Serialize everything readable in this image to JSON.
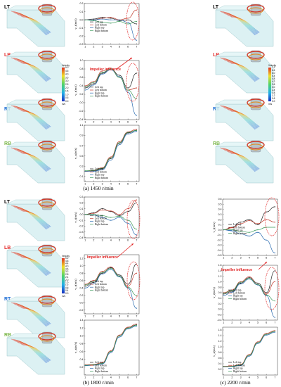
{
  "labels": {
    "lt": "LT",
    "lb": "LB",
    "rt": "RT",
    "rb": "RB"
  },
  "label_colors": {
    "lt": "#000000",
    "lb": "#e32b2b",
    "rt": "#1f6fd6",
    "rb": "#7ab648"
  },
  "captions": {
    "a": "(a) 1450 r/min",
    "b": "(b) 1800 r/min",
    "c": "(c) 2200 r/min"
  },
  "impeller_text": "Impeller influence",
  "colorbar": {
    "title": "Velocity",
    "unit": "m/s",
    "ticks_a": [
      "5.0",
      "4.5",
      "4.0",
      "3.5",
      "3.0",
      "2.5",
      "2.0",
      "1.5",
      "1.0",
      "0.5",
      "0.0"
    ],
    "ticks_b": [
      "5.2",
      "4.8",
      "4.4",
      "4.0",
      "3.6",
      "3.2",
      "2.8",
      "2.4",
      "2.0",
      "1.6",
      "1.2",
      "0.8",
      "0.4",
      "0.0"
    ],
    "ticks_c": [
      "7.2",
      "6.6",
      "6.0",
      "5.4",
      "4.8",
      "4.2",
      "3.6",
      "3.0",
      "2.4",
      "1.8",
      "1.2",
      "0.6",
      "0.0"
    ]
  },
  "legend": [
    "Left top",
    "Left bottom",
    "Right top",
    "Right bottom"
  ],
  "series_colors": [
    "#222222",
    "#c0392b",
    "#2b6cb0",
    "#3a9a5a"
  ],
  "chart_data": [
    {
      "id": "a1",
      "type": "line",
      "ylabel": "v_t(m/s)",
      "x": [
        1,
        2,
        3,
        4,
        5,
        6,
        7
      ],
      "ylim": [
        -0.3,
        0.2
      ],
      "yticks": [
        "0.2",
        "0.1",
        "0.0",
        "-0.1",
        "-0.2",
        "-0.3"
      ],
      "series": [
        {
          "name": "Left top",
          "values": [
            0.0,
            0.01,
            0.03,
            0.02,
            -0.01,
            0.0,
            -0.05
          ]
        },
        {
          "name": "Left bottom",
          "values": [
            0.0,
            0.0,
            0.02,
            0.03,
            0.0,
            0.02,
            0.12
          ]
        },
        {
          "name": "Right top",
          "values": [
            0.0,
            0.0,
            0.01,
            0.0,
            0.0,
            -0.03,
            -0.25
          ]
        },
        {
          "name": "Right bottom",
          "values": [
            0.0,
            -0.01,
            -0.03,
            -0.04,
            -0.02,
            -0.05,
            -0.02
          ]
        }
      ]
    },
    {
      "id": "a2",
      "type": "line",
      "ylabel": "v_r(m/s)",
      "x": [
        1,
        2,
        3,
        4,
        5,
        6,
        7
      ],
      "ylim": [
        -0.4,
        1.0
      ],
      "yticks": [
        "1.0",
        "0.8",
        "0.6",
        "0.4",
        "0.2",
        "0.0",
        "-0.2",
        "-0.4"
      ],
      "series": [
        {
          "name": "Left top",
          "values": [
            0.35,
            0.45,
            0.7,
            0.8,
            0.65,
            0.35,
            0.7
          ]
        },
        {
          "name": "Left bottom",
          "values": [
            0.4,
            0.5,
            0.75,
            0.82,
            0.6,
            0.3,
            0.35
          ]
        },
        {
          "name": "Right top",
          "values": [
            0.3,
            0.42,
            0.68,
            0.78,
            0.62,
            0.25,
            -0.3
          ]
        },
        {
          "name": "Right bottom",
          "values": [
            0.38,
            0.48,
            0.72,
            0.8,
            0.6,
            0.3,
            0.1
          ]
        }
      ]
    },
    {
      "id": "a3",
      "type": "line",
      "ylabel": "v_z(m/s)",
      "x": [
        1,
        2,
        3,
        4,
        5,
        6,
        7
      ],
      "ylim": [
        0.0,
        1.1
      ],
      "yticks": [
        "1.1",
        "0.9",
        "0.7",
        "0.5",
        "0.3",
        "0.1"
      ],
      "series": [
        {
          "name": "Left top",
          "values": [
            0.2,
            0.21,
            0.25,
            0.45,
            0.75,
            0.95,
            1.0
          ]
        },
        {
          "name": "Left bottom",
          "values": [
            0.2,
            0.22,
            0.27,
            0.48,
            0.78,
            0.97,
            1.02
          ]
        },
        {
          "name": "Right top",
          "values": [
            0.2,
            0.2,
            0.23,
            0.42,
            0.72,
            0.93,
            0.98
          ]
        },
        {
          "name": "Right bottom",
          "values": [
            0.21,
            0.22,
            0.26,
            0.46,
            0.76,
            0.96,
            1.0
          ]
        }
      ]
    },
    {
      "id": "b1",
      "type": "line",
      "ylabel": "v_t(m/s)",
      "x": [
        1,
        2,
        3,
        4,
        5,
        6,
        7
      ],
      "ylim": [
        -0.4,
        0.3
      ],
      "yticks": [
        "0.3",
        "0.2",
        "0.1",
        "0.0",
        "-0.1",
        "-0.2",
        "-0.3",
        "-0.4"
      ],
      "series": [
        {
          "name": "Left top",
          "values": [
            0.0,
            0.03,
            0.1,
            0.05,
            -0.02,
            0.05,
            0.2
          ]
        },
        {
          "name": "Left bottom",
          "values": [
            0.0,
            0.02,
            0.08,
            0.06,
            0.0,
            0.1,
            0.25
          ]
        },
        {
          "name": "Right top",
          "values": [
            0.0,
            -0.01,
            -0.05,
            -0.1,
            -0.05,
            -0.15,
            -0.35
          ]
        },
        {
          "name": "Right bottom",
          "values": [
            0.0,
            0.0,
            -0.02,
            -0.05,
            -0.03,
            -0.1,
            -0.25
          ]
        }
      ]
    },
    {
      "id": "b2",
      "type": "line",
      "ylabel": "v_r(m/s)",
      "x": [
        1,
        2,
        3,
        4,
        5,
        6,
        7
      ],
      "ylim": [
        -0.3,
        1.3
      ],
      "yticks": [
        "1.2",
        "1.0",
        "0.8",
        "0.6",
        "0.4",
        "0.2",
        "0.0",
        "-0.2"
      ],
      "series": [
        {
          "name": "Left top",
          "values": [
            0.45,
            0.55,
            0.8,
            0.95,
            0.75,
            0.5,
            1.05
          ]
        },
        {
          "name": "Left bottom",
          "values": [
            0.5,
            0.6,
            0.85,
            0.97,
            0.72,
            0.45,
            0.8
          ]
        },
        {
          "name": "Right top",
          "values": [
            0.4,
            0.52,
            0.78,
            0.9,
            0.7,
            0.4,
            -0.15
          ]
        },
        {
          "name": "Right bottom",
          "values": [
            0.48,
            0.58,
            0.82,
            0.93,
            0.72,
            0.42,
            0.2
          ]
        }
      ]
    },
    {
      "id": "b3",
      "type": "line",
      "ylabel": "v_z(m/s)",
      "x": [
        1,
        2,
        3,
        4,
        5,
        6,
        7
      ],
      "ylim": [
        0.0,
        1.4
      ],
      "yticks": [
        "1.4",
        "1.2",
        "1.0",
        "0.8",
        "0.6",
        "0.4",
        "0.2"
      ],
      "series": [
        {
          "name": "Left top",
          "values": [
            0.25,
            0.26,
            0.3,
            0.6,
            1.0,
            1.2,
            1.28
          ]
        },
        {
          "name": "Left bottom",
          "values": [
            0.26,
            0.27,
            0.32,
            0.62,
            1.02,
            1.22,
            1.3
          ]
        },
        {
          "name": "Right top",
          "values": [
            0.24,
            0.25,
            0.28,
            0.57,
            0.97,
            1.18,
            1.25
          ]
        },
        {
          "name": "Right bottom",
          "values": [
            0.25,
            0.26,
            0.3,
            0.6,
            1.0,
            1.2,
            1.27
          ]
        }
      ]
    },
    {
      "id": "c1",
      "type": "line",
      "ylabel": "v_t(m/s)",
      "x": [
        1,
        2,
        3,
        4,
        5,
        6,
        7
      ],
      "ylim": [
        -0.5,
        0.6
      ],
      "yticks": [
        "0.6",
        "0.5",
        "0.4",
        "0.3",
        "0.2",
        "0.1",
        "0.0",
        "-0.1",
        "-0.2",
        "-0.3",
        "-0.4",
        "-0.5"
      ],
      "series": [
        {
          "name": "Left top",
          "values": [
            0.0,
            0.05,
            0.15,
            0.2,
            0.1,
            0.35,
            0.45
          ]
        },
        {
          "name": "Left bottom",
          "values": [
            0.0,
            0.04,
            0.12,
            0.18,
            0.12,
            0.2,
            0.15
          ]
        },
        {
          "name": "Right top",
          "values": [
            0.0,
            -0.02,
            -0.08,
            -0.12,
            -0.05,
            -0.2,
            -0.45
          ]
        },
        {
          "name": "Right bottom",
          "values": [
            0.0,
            0.0,
            -0.03,
            -0.05,
            0.0,
            0.05,
            0.05
          ]
        }
      ]
    },
    {
      "id": "c2",
      "type": "line",
      "ylabel": "v_r(m/s)",
      "x": [
        1,
        2,
        3,
        4,
        5,
        6,
        7
      ],
      "ylim": [
        -0.4,
        1.6
      ],
      "yticks": [
        "1.6",
        "1.4",
        "1.2",
        "1.0",
        "0.8",
        "0.6",
        "0.4",
        "0.2",
        "0.0",
        "-0.2",
        "-0.4"
      ],
      "series": [
        {
          "name": "Left top",
          "values": [
            0.55,
            0.65,
            0.95,
            1.15,
            0.95,
            0.6,
            1.4
          ]
        },
        {
          "name": "Left bottom",
          "values": [
            0.6,
            0.7,
            1.0,
            1.18,
            0.9,
            0.55,
            1.0
          ]
        },
        {
          "name": "Right top",
          "values": [
            0.5,
            0.62,
            0.92,
            1.1,
            0.88,
            0.5,
            -0.3
          ]
        },
        {
          "name": "Right bottom",
          "values": [
            0.58,
            0.68,
            0.98,
            1.12,
            0.9,
            0.52,
            0.3
          ]
        }
      ]
    },
    {
      "id": "c3",
      "type": "line",
      "ylabel": "v_z(m/s)",
      "x": [
        1,
        2,
        3,
        4,
        5,
        6,
        7
      ],
      "ylim": [
        0.0,
        1.7
      ],
      "yticks": [
        "1.6",
        "1.4",
        "1.2",
        "1.0",
        "0.8",
        "0.6",
        "0.4",
        "0.2"
      ],
      "series": [
        {
          "name": "Left top",
          "values": [
            0.3,
            0.31,
            0.36,
            0.7,
            1.15,
            1.45,
            1.55
          ]
        },
        {
          "name": "Left bottom",
          "values": [
            0.31,
            0.32,
            0.38,
            0.73,
            1.18,
            1.48,
            1.58
          ]
        },
        {
          "name": "Right top",
          "values": [
            0.29,
            0.3,
            0.34,
            0.67,
            1.12,
            1.42,
            1.52
          ]
        },
        {
          "name": "Right bottom",
          "values": [
            0.3,
            0.31,
            0.36,
            0.7,
            1.15,
            1.45,
            1.55
          ]
        }
      ]
    }
  ]
}
